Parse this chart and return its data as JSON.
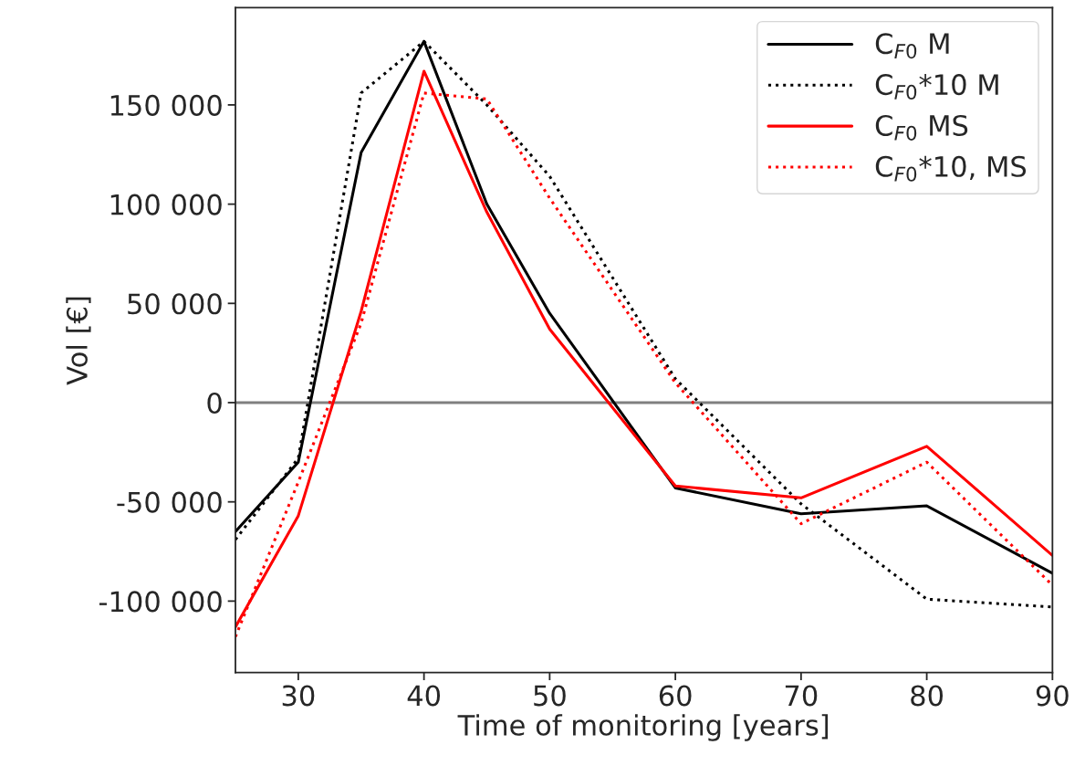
{
  "chart_data": {
    "type": "line",
    "xlabel": "Time of monitoring [years]",
    "ylabel": "Vol [€]",
    "x": [
      25,
      30,
      35,
      40,
      45,
      50,
      60,
      70,
      80,
      90
    ],
    "series": [
      {
        "name": "C$_{F0}$ M",
        "color": "#000000",
        "line_style": "solid",
        "values": [
          -65000,
          -30000,
          126000,
          182000,
          100000,
          45000,
          -43000,
          -56000,
          -52000,
          -86000
        ]
      },
      {
        "name": "C$_{F0}$*10 M",
        "color": "#000000",
        "line_style": "dotted",
        "values": [
          -69000,
          -28000,
          156000,
          182000,
          150000,
          114000,
          12000,
          -51000,
          -99000,
          -103000
        ]
      },
      {
        "name": "C$_{F0}$ MS",
        "color": "#ff0000",
        "line_style": "solid",
        "values": [
          -113000,
          -57000,
          46000,
          167000,
          96000,
          37000,
          -42000,
          -48000,
          -22000,
          -77000
        ]
      },
      {
        "name": "C$_{F0}$*10, MS",
        "color": "#ff0000",
        "line_style": "dotted",
        "values": [
          -118000,
          -40000,
          40000,
          156000,
          153000,
          103000,
          10000,
          -61000,
          -30000,
          -92000
        ]
      }
    ],
    "xlim": [
      25,
      90
    ],
    "xticks": [
      30,
      40,
      50,
      60,
      70,
      80,
      90
    ],
    "ylim": [
      -136000,
      199000
    ],
    "yticks": [
      {
        "value": -100000,
        "label": "-100 000"
      },
      {
        "value": -50000,
        "label": "-50 000"
      },
      0,
      {
        "value": 50000,
        "label": "50 000"
      },
      {
        "value": 100000,
        "label": "100 000"
      },
      {
        "value": 150000,
        "label": "150 000"
      }
    ],
    "ref_lines": [
      {
        "axis": "y",
        "value": 0,
        "color": "#808080",
        "line_style": "solid"
      }
    ],
    "legend": "top right",
    "grid": false
  }
}
